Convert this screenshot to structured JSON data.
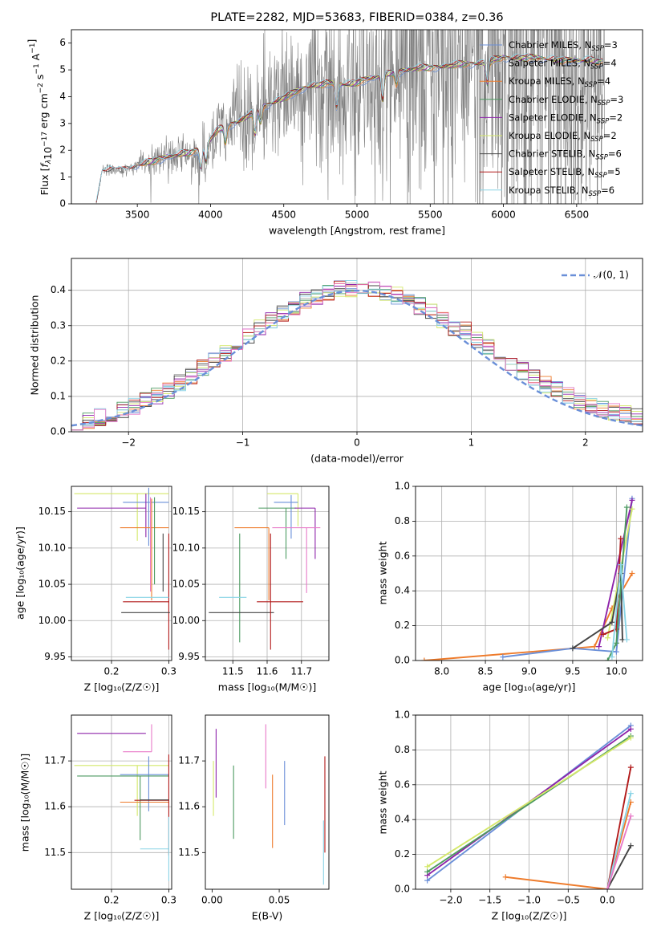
{
  "colors": {
    "Chabrier MILES": "#6a8fd8",
    "Salpeter MILES": "#a8a8a8",
    "Kroupa MILES": "#ee7b2b",
    "Chabrier ELODIE": "#4c9a60",
    "Salpeter ELODIE": "#8e24aa",
    "Kroupa ELODIE": "#d4e86a",
    "Chabrier STELIB": "#444444",
    "Salpeter STELIB": "#b21a1a",
    "Kroupa STELIB": "#8ad4e6",
    "extra_pink": "#e87ac8",
    "observed": "#808080",
    "gaussian": "#6a8fd8"
  },
  "chart_data": [
    {
      "id": "spectrum",
      "type": "line",
      "title": "PLATE=2282, MJD=53683, FIBERID=0384, z=0.36",
      "xlabel": "wavelength [Angstrom, rest frame]",
      "ylabel": "Flux [f_λ10^-17 erg cm^-2 s^-1 A^-1]",
      "xlim": [
        3050,
        6950
      ],
      "ylim": [
        0,
        6.5
      ],
      "xticks": [
        3500,
        4000,
        4500,
        5000,
        5500,
        6000,
        6500
      ],
      "yticks": [
        0,
        1,
        2,
        3,
        4,
        5,
        6
      ],
      "grid": false,
      "legend_position": "upper right",
      "legend": [
        {
          "label": "Chabrier MILES, N",
          "sub": "SSP",
          "suffix": "=3"
        },
        {
          "label": "Salpeter MILES, N",
          "sub": "SSP",
          "suffix": "=4"
        },
        {
          "label": "Kroupa MILES, N",
          "sub": "SSP",
          "suffix": "=4"
        },
        {
          "label": "Chabrier ELODIE, N",
          "sub": "SSP",
          "suffix": "=3"
        },
        {
          "label": "Salpeter ELODIE, N",
          "sub": "SSP",
          "suffix": "=2"
        },
        {
          "label": "Kroupa ELODIE, N",
          "sub": "SSP",
          "suffix": "=2"
        },
        {
          "label": "Chabrier STELIB, N",
          "sub": "SSP",
          "suffix": "=6"
        },
        {
          "label": "Salpeter STELIB, N",
          "sub": "SSP",
          "suffix": "=5"
        },
        {
          "label": "Kroupa STELIB, N",
          "sub": "SSP",
          "suffix": "=6"
        }
      ],
      "continuum": [
        [
          3220,
          0.05
        ],
        [
          3260,
          1.25
        ],
        [
          3400,
          1.25
        ],
        [
          3550,
          1.5
        ],
        [
          3700,
          1.75
        ],
        [
          3850,
          1.9
        ],
        [
          3950,
          2.1
        ],
        [
          4050,
          2.75
        ],
        [
          4200,
          3.1
        ],
        [
          4350,
          3.6
        ],
        [
          4500,
          3.95
        ],
        [
          4650,
          4.35
        ],
        [
          4800,
          4.5
        ],
        [
          4950,
          4.45
        ],
        [
          5100,
          4.7
        ],
        [
          5250,
          4.9
        ],
        [
          5400,
          5.05
        ],
        [
          5550,
          5.1
        ],
        [
          5700,
          5.2
        ],
        [
          5850,
          5.25
        ],
        [
          6000,
          5.45
        ],
        [
          6200,
          5.45
        ],
        [
          6400,
          5.35
        ],
        [
          6600,
          5.35
        ],
        [
          6680,
          5.3
        ]
      ]
    },
    {
      "id": "residuals",
      "type": "step",
      "xlabel": "(data-model)/error",
      "ylabel": "Normed distribution",
      "xlim": [
        -2.5,
        2.5
      ],
      "ylim": [
        0,
        0.49
      ],
      "xticks": [
        -2,
        -1,
        0,
        1,
        2
      ],
      "yticks": [
        0.0,
        0.1,
        0.2,
        0.3,
        0.4
      ],
      "grid": true,
      "legend_position": "upper right",
      "legend_label": "𝒩(0, 1)",
      "bin_width": 0.1
    },
    {
      "id": "age_vs_Z",
      "type": "errorbar",
      "xlabel": "Z [log₁₀(Z/Z☉)]",
      "ylabel": "age  [log₁₀(age/yr)]",
      "xlim": [
        0.13,
        0.305
      ],
      "ylim": [
        9.945,
        10.185
      ],
      "xticks": [
        0.2,
        0.3
      ],
      "yticks": [
        9.95,
        10.0,
        10.05,
        10.1,
        10.15
      ],
      "grid": true,
      "points": [
        {
          "c": "Kroupa ELODIE",
          "x": 0.245,
          "xerr": [
            0.11,
            0.055
          ],
          "y": 10.175,
          "yerr": [
            0.065,
            0.0
          ]
        },
        {
          "c": "Chabrier MILES",
          "x": 0.265,
          "xerr": [
            0.045,
            0.035
          ],
          "y": 10.163,
          "yerr": [
            0.06,
            0.02
          ]
        },
        {
          "c": "Salpeter ELODIE",
          "x": 0.26,
          "xerr": [
            0.12,
            0.0
          ],
          "y": 10.155,
          "yerr": [
            0.04,
            0.02
          ]
        },
        {
          "c": "Kroupa MILES",
          "x": 0.27,
          "xerr": [
            0.055,
            0.03
          ],
          "y": 10.128,
          "yerr": [
            0.1,
            0.04
          ]
        },
        {
          "c": "extra_pink",
          "x": 0.268,
          "xerr": [
            0.0,
            0.0
          ],
          "y": 10.14,
          "yerr": [
            0.1,
            0.03
          ]
        },
        {
          "c": "Chabrier ELODIE",
          "x": 0.275,
          "xerr": [
            0.0,
            0.0
          ],
          "y": 10.12,
          "yerr": [
            0.07,
            0.05
          ]
        },
        {
          "c": "Salpeter STELIB",
          "x": 0.3,
          "xerr": [
            0.0,
            0.0
          ],
          "y": 10.02,
          "yerr": [
            0.06,
            0.1
          ]
        },
        {
          "c": "Kroupa STELIB",
          "x": 0.27,
          "xerr": [
            0.045,
            0.03
          ],
          "y": 10.032,
          "yerr": [
            0.0,
            0.0
          ]
        },
        {
          "c": "Salpeter STELIB",
          "x": 0.265,
          "xerr": [
            0.045,
            0.035
          ],
          "y": 10.026,
          "yerr": [
            0.0,
            0.0
          ]
        },
        {
          "c": "Chabrier STELIB",
          "x": 0.262,
          "xerr": [
            0.045,
            0.04
          ],
          "y": 10.011,
          "yerr": [
            0.0,
            0.0
          ]
        },
        {
          "c": "Chabrier STELIB",
          "x": 0.29,
          "xerr": [
            0.0,
            0.0
          ],
          "y": 10.08,
          "yerr": [
            0.04,
            0.04
          ]
        }
      ]
    },
    {
      "id": "age_vs_mass",
      "type": "errorbar",
      "xlabel": "mass [log₁₀(M/M☉)]",
      "xlim": [
        11.42,
        11.78
      ],
      "ylim": [
        9.945,
        10.185
      ],
      "xticks": [
        11.5,
        11.6,
        11.7
      ],
      "yticks": [
        9.95,
        10.0,
        10.05,
        10.1,
        10.15
      ],
      "grid": true,
      "points": [
        {
          "c": "Kroupa ELODIE",
          "x": 11.69,
          "xerr": [
            0.09,
            0.0
          ],
          "y": 10.175,
          "yerr": [
            0.045,
            0.0
          ]
        },
        {
          "c": "Chabrier MILES",
          "x": 11.67,
          "xerr": [
            0.05,
            0.02
          ],
          "y": 10.163,
          "yerr": [
            0.05,
            0.01
          ]
        },
        {
          "c": "Chabrier ELODIE",
          "x": 11.655,
          "xerr": [
            0.08,
            0.03
          ],
          "y": 10.155,
          "yerr": [
            0.07,
            0.0
          ]
        },
        {
          "c": "Salpeter ELODIE",
          "x": 11.74,
          "xerr": [
            0.06,
            0.0
          ],
          "y": 10.155,
          "yerr": [
            0.07,
            0.0
          ]
        },
        {
          "c": "extra_pink",
          "x": 11.715,
          "xerr": [
            0.1,
            0.04
          ],
          "y": 10.128,
          "yerr": [
            0.09,
            0.0
          ]
        },
        {
          "c": "Kroupa MILES",
          "x": 11.605,
          "xerr": [
            0.1,
            0.0
          ],
          "y": 10.128,
          "yerr": [
            0.1,
            0.0
          ]
        },
        {
          "c": "Chabrier ELODIE",
          "x": 11.52,
          "xerr": [
            0.0,
            0.0
          ],
          "y": 10.05,
          "yerr": [
            0.08,
            0.07
          ]
        },
        {
          "c": "Kroupa STELIB",
          "x": 11.5,
          "xerr": [
            0.04,
            0.04
          ],
          "y": 10.032,
          "yerr": [
            0.0,
            0.0
          ]
        },
        {
          "c": "Salpeter STELIB",
          "x": 11.615,
          "xerr": [
            0.045,
            0.09
          ],
          "y": 10.026,
          "yerr": [
            0.0,
            0.0
          ]
        },
        {
          "c": "Chabrier STELIB",
          "x": 11.52,
          "xerr": [
            0.09,
            0.1
          ],
          "y": 10.011,
          "yerr": [
            0.0,
            0.0
          ]
        },
        {
          "c": "Salpeter STELIB",
          "x": 11.61,
          "xerr": [
            0.0,
            0.0
          ],
          "y": 10.04,
          "yerr": [
            0.08,
            0.08
          ]
        }
      ]
    },
    {
      "id": "weight_vs_age",
      "type": "line",
      "xlabel": "age  [log₁₀(age/yr)]",
      "ylabel": "mass weight",
      "xlim": [
        7.7,
        10.3
      ],
      "ylim": [
        0,
        1
      ],
      "xticks": [
        8.0,
        8.5,
        9.0,
        9.5,
        10.0
      ],
      "yticks": [
        0.0,
        0.2,
        0.4,
        0.6,
        0.8,
        1.0
      ],
      "grid": true,
      "series": [
        {
          "c": "Kroupa MILES",
          "x": [
            7.8,
            9.75,
            9.95,
            10.18
          ],
          "y": [
            0.0,
            0.08,
            0.3,
            0.5
          ]
        },
        {
          "c": "Chabrier MILES",
          "x": [
            8.7,
            9.5,
            10.0,
            10.18
          ],
          "y": [
            0.02,
            0.07,
            0.05,
            0.93
          ]
        },
        {
          "c": "Salpeter ELODIE",
          "x": [
            9.8,
            10.18
          ],
          "y": [
            0.08,
            0.92
          ]
        },
        {
          "c": "Kroupa ELODIE",
          "x": [
            9.9,
            10.18
          ],
          "y": [
            0.13,
            0.87
          ]
        },
        {
          "c": "Salpeter STELIB",
          "x": [
            9.85,
            10.0,
            10.05
          ],
          "y": [
            0.15,
            0.18,
            0.7
          ]
        },
        {
          "c": "Chabrier STELIB",
          "x": [
            9.5,
            9.95,
            10.05,
            10.07
          ],
          "y": [
            0.07,
            0.22,
            0.5,
            0.12
          ]
        },
        {
          "c": "Chabrier ELODIE",
          "x": [
            9.9,
            10.0,
            10.12
          ],
          "y": [
            0.0,
            0.1,
            0.88
          ]
        },
        {
          "c": "Kroupa STELIB",
          "x": [
            9.95,
            10.05,
            10.12
          ],
          "y": [
            0.02,
            0.55,
            0.12
          ]
        }
      ]
    },
    {
      "id": "mass_vs_Z",
      "type": "errorbar",
      "xlabel": "Z [log₁₀(Z/Z☉)]",
      "ylabel": "mass [log₁₀(M/M☉)]",
      "xlim": [
        0.13,
        0.305
      ],
      "ylim": [
        11.42,
        11.8
      ],
      "xticks": [
        0.2,
        0.3
      ],
      "yticks": [
        11.5,
        11.6,
        11.7
      ],
      "grid": true,
      "points": [
        {
          "c": "Salpeter ELODIE",
          "x": 0.26,
          "xerr": [
            0.12,
            0.0
          ],
          "y": 11.76,
          "yerr": [
            0.0,
            0.0
          ]
        },
        {
          "c": "extra_pink",
          "x": 0.27,
          "xerr": [
            0.05,
            0.0
          ],
          "y": 11.72,
          "yerr": [
            0.0,
            0.06
          ]
        },
        {
          "c": "Kroupa ELODIE",
          "x": 0.245,
          "xerr": [
            0.11,
            0.055
          ],
          "y": 11.69,
          "yerr": [
            0.11,
            0.0
          ]
        },
        {
          "c": "Chabrier MILES",
          "x": 0.265,
          "xerr": [
            0.05,
            0.035
          ],
          "y": 11.67,
          "yerr": [
            0.08,
            0.04
          ]
        },
        {
          "c": "Chabrier ELODIE",
          "x": 0.25,
          "xerr": [
            0.11,
            0.05
          ],
          "y": 11.667,
          "yerr": [
            0.14,
            0.0
          ]
        },
        {
          "c": "Kroupa MILES",
          "x": 0.26,
          "xerr": [
            0.045,
            0.04
          ],
          "y": 11.61,
          "yerr": [
            0.0,
            0.0
          ]
        },
        {
          "c": "Salpeter STELIB",
          "x": 0.3,
          "xerr": [
            0.06,
            0.0
          ],
          "y": 11.614,
          "yerr": [
            0.12,
            0.1
          ]
        },
        {
          "c": "Chabrier STELIB",
          "x": 0.3,
          "xerr": [
            0.05,
            0.0
          ],
          "y": 11.615,
          "yerr": [
            0.0,
            0.0
          ]
        },
        {
          "c": "Kroupa STELIB",
          "x": 0.3,
          "xerr": [
            0.05,
            0.0
          ],
          "y": 11.508,
          "yerr": [
            0.07,
            0.07
          ]
        },
        {
          "c": "Chabrier MILES",
          "x": 0.3,
          "xerr": [
            0.0,
            0.0
          ],
          "y": 11.505,
          "yerr": [
            0.0,
            0.0
          ]
        }
      ]
    },
    {
      "id": "mass_vs_ebv",
      "type": "errorbar",
      "xlabel": "E(B-V)",
      "xlim": [
        -0.005,
        0.087
      ],
      "ylim": [
        11.42,
        11.8
      ],
      "xticks": [
        0.0,
        0.05
      ],
      "yticks": [
        11.5,
        11.6,
        11.7
      ],
      "grid": false,
      "points": [
        {
          "c": "Salpeter ELODIE",
          "x": 0.003,
          "xerr": [
            0.0,
            0.0
          ],
          "y": 11.7,
          "yerr": [
            0.08,
            0.07
          ]
        },
        {
          "c": "Kroupa ELODIE",
          "x": 0.001,
          "xerr": [
            0.0,
            0.0
          ],
          "y": 11.64,
          "yerr": [
            0.06,
            0.06
          ]
        },
        {
          "c": "Chabrier ELODIE",
          "x": 0.016,
          "xerr": [
            0.0,
            0.0
          ],
          "y": 11.61,
          "yerr": [
            0.08,
            0.08
          ]
        },
        {
          "c": "extra_pink",
          "x": 0.04,
          "xerr": [
            0.0,
            0.0
          ],
          "y": 11.7,
          "yerr": [
            0.06,
            0.08
          ]
        },
        {
          "c": "Kroupa MILES",
          "x": 0.045,
          "xerr": [
            0.0,
            0.0
          ],
          "y": 11.59,
          "yerr": [
            0.08,
            0.08
          ]
        },
        {
          "c": "Chabrier MILES",
          "x": 0.054,
          "xerr": [
            0.0,
            0.0
          ],
          "y": 11.63,
          "yerr": [
            0.07,
            0.07
          ]
        },
        {
          "c": "Salpeter STELIB",
          "x": 0.084,
          "xerr": [
            0.0,
            0.0
          ],
          "y": 11.62,
          "yerr": [
            0.12,
            0.09
          ]
        },
        {
          "c": "Kroupa STELIB",
          "x": 0.083,
          "xerr": [
            0.0,
            0.0
          ],
          "y": 11.5,
          "yerr": [
            0.07,
            0.07
          ]
        }
      ]
    },
    {
      "id": "weight_vs_Z",
      "type": "line",
      "xlabel": "Z [log₁₀(Z/Z☉)]",
      "ylabel": "mass weight",
      "xlim": [
        -2.45,
        0.45
      ],
      "ylim": [
        0,
        1
      ],
      "xticks": [
        -2.0,
        -1.5,
        -1.0,
        -0.5,
        0.0
      ],
      "yticks": [
        0.0,
        0.2,
        0.4,
        0.6,
        0.8,
        1.0
      ],
      "grid": true,
      "series": [
        {
          "c": "Chabrier MILES",
          "x": [
            -2.3,
            0.3
          ],
          "y": [
            0.05,
            0.94
          ]
        },
        {
          "c": "Salpeter ELODIE",
          "x": [
            -2.3,
            0.3
          ],
          "y": [
            0.08,
            0.92
          ]
        },
        {
          "c": "Chabrier ELODIE",
          "x": [
            -2.3,
            0.3
          ],
          "y": [
            0.1,
            0.88
          ]
        },
        {
          "c": "Kroupa ELODIE",
          "x": [
            -2.3,
            0.3
          ],
          "y": [
            0.13,
            0.87
          ]
        },
        {
          "c": "Kroupa MILES",
          "x": [
            -1.3,
            0.0,
            0.3
          ],
          "y": [
            0.07,
            0.0,
            0.5
          ]
        },
        {
          "c": "Salpeter STELIB",
          "x": [
            0.0,
            0.3
          ],
          "y": [
            0.0,
            0.7
          ]
        },
        {
          "c": "Chabrier STELIB",
          "x": [
            0.0,
            0.3
          ],
          "y": [
            0.0,
            0.25
          ]
        },
        {
          "c": "Kroupa STELIB",
          "x": [
            0.0,
            0.3
          ],
          "y": [
            0.0,
            0.55
          ]
        },
        {
          "c": "extra_pink",
          "x": [
            0.0,
            0.3
          ],
          "y": [
            0.0,
            0.42
          ]
        }
      ]
    }
  ]
}
